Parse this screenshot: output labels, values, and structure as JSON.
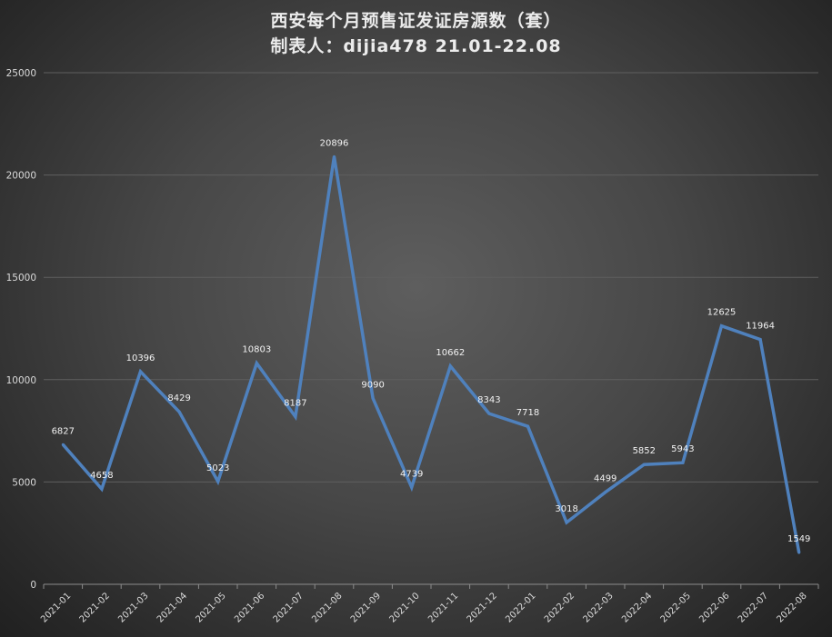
{
  "chart_data": {
    "type": "line",
    "title": "西安每个月预售证发证房源数（套）",
    "subtitle": "制表人：dijia478 21.01-22.08",
    "categories": [
      "2021-01",
      "2021-02",
      "2021-03",
      "2021-04",
      "2021-05",
      "2021-06",
      "2021-07",
      "2021-08",
      "2021-09",
      "2021-10",
      "2021-11",
      "2021-12",
      "2022-01",
      "2022-02",
      "2022-03",
      "2022-04",
      "2022-05",
      "2022-06",
      "2022-07",
      "2022-08"
    ],
    "series": [
      {
        "values": [
          6827,
          4658,
          10396,
          8429,
          5023,
          10803,
          8187,
          20896,
          9090,
          4739,
          10662,
          8343,
          7718,
          3018,
          4499,
          5852,
          5943,
          12625,
          11964,
          1549
        ]
      }
    ],
    "yticks": [
      "0",
      "5000",
      "10000",
      "15000",
      "20000",
      "25000"
    ],
    "ylim": [
      0,
      25000
    ],
    "grid": true,
    "line_color": "#4f81bd"
  }
}
